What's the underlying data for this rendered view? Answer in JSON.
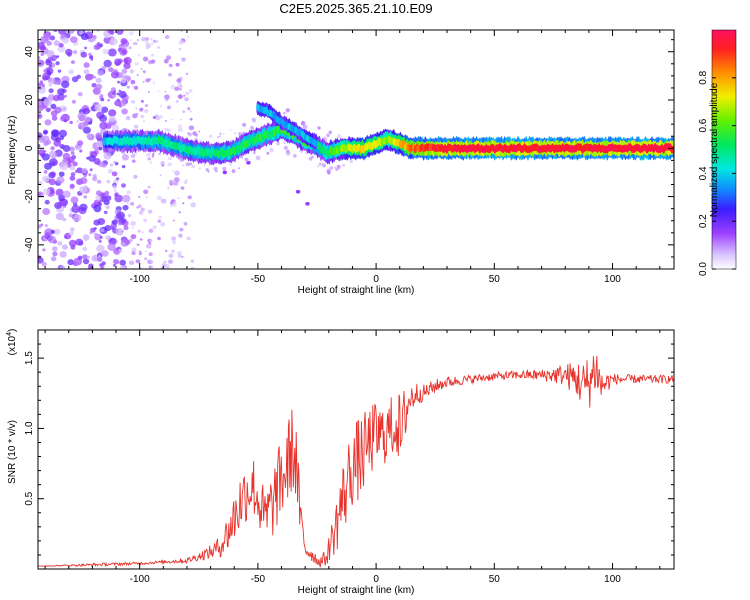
{
  "title": "C2E5.2025.365.21.10.E09",
  "chart_data": [
    {
      "type": "heatmap",
      "title": "C2E5.2025.365.21.10.E09",
      "xlabel": "Height of straight line (km)",
      "ylabel": "Frequency (Hz)",
      "xlim": [
        -143,
        126
      ],
      "ylim": [
        -50,
        49
      ],
      "xticks": [
        -100,
        -50,
        0,
        50,
        100
      ],
      "xtick_labels": [
        "-100",
        "-50",
        "0",
        "50",
        "100"
      ],
      "yticks": [
        -40,
        -20,
        0,
        20,
        40
      ],
      "ytick_labels": [
        "-40",
        "-20",
        "0",
        "20",
        "40"
      ],
      "ridge": {
        "x": [
          -115,
          -108,
          -100,
          -92,
          -85,
          -78,
          -72,
          -65,
          -60,
          -55,
          -50,
          -45,
          -40,
          -35,
          -30,
          -25,
          -21,
          -18,
          -14,
          -10,
          -5,
          0,
          5,
          10,
          15,
          25,
          40,
          60,
          80,
          100,
          126
        ],
        "y": [
          3,
          3,
          3,
          3,
          1,
          -1,
          -2,
          -2,
          -1,
          2,
          4,
          6,
          8,
          6,
          3,
          1,
          -2,
          -1,
          0,
          0,
          0,
          2,
          4,
          2,
          0,
          0,
          0,
          0,
          0,
          0,
          0
        ],
        "amplitude": [
          0.35,
          0.4,
          0.4,
          0.45,
          0.45,
          0.45,
          0.45,
          0.5,
          0.5,
          0.5,
          0.5,
          0.5,
          0.55,
          0.55,
          0.55,
          0.5,
          0.5,
          0.55,
          0.65,
          0.7,
          0.75,
          0.7,
          0.6,
          0.75,
          0.85,
          0.95,
          0.97,
          0.97,
          0.97,
          0.97,
          0.97
        ]
      },
      "branch": {
        "x": [
          -50,
          -45,
          -40,
          -35,
          -30,
          -25
        ],
        "y": [
          17,
          15,
          11,
          8,
          5,
          2
        ]
      },
      "colorbar": {
        "label": "Normalized spectral amplitude",
        "range": [
          0.0,
          1.0
        ],
        "ticks": [
          0.0,
          0.2,
          0.4,
          0.6,
          0.8
        ],
        "tick_labels": [
          "0.0",
          "0.2",
          "0.4",
          "0.6",
          "0.8"
        ]
      }
    },
    {
      "type": "line",
      "xlabel": "Height of straight line (km)",
      "ylabel": "SNR (10 * v/v)",
      "multiplier_label": "(x10",
      "multiplier_exp": "4",
      "multiplier_close": ")",
      "xlim": [
        -143,
        126
      ],
      "ylim": [
        0,
        1.7
      ],
      "xticks": [
        -100,
        -50,
        0,
        50,
        100
      ],
      "xtick_labels": [
        "-100",
        "-50",
        "0",
        "50",
        "100"
      ],
      "yticks": [
        0.5,
        1.0,
        1.5
      ],
      "ytick_labels": [
        "0.5",
        "1.0",
        "1.5"
      ],
      "series": [
        {
          "name": "SNR",
          "color": "#e8322c",
          "x": [
            -143,
            -120,
            -100,
            -90,
            -80,
            -75,
            -70,
            -66,
            -62,
            -58,
            -55,
            -52,
            -50,
            -47,
            -44,
            -41,
            -38,
            -36,
            -34,
            -32,
            -30,
            -27,
            -24,
            -21,
            -19,
            -17,
            -15,
            -13,
            -11,
            -9,
            -6,
            -3,
            0,
            3,
            6,
            9,
            11,
            12,
            14,
            17,
            20,
            25,
            30,
            40,
            50,
            60,
            70,
            80,
            85,
            88,
            91,
            93,
            95,
            100,
            110,
            126
          ],
          "y": [
            0.02,
            0.03,
            0.04,
            0.05,
            0.06,
            0.09,
            0.12,
            0.16,
            0.28,
            0.45,
            0.55,
            0.6,
            0.5,
            0.35,
            0.45,
            0.6,
            0.7,
            0.85,
            0.8,
            0.35,
            0.15,
            0.1,
            0.05,
            0.08,
            0.2,
            0.3,
            0.45,
            0.55,
            0.7,
            0.75,
            0.8,
            0.9,
            0.95,
            0.95,
            1.0,
            1.05,
            0.9,
            1.1,
            1.2,
            1.25,
            1.25,
            1.3,
            1.33,
            1.35,
            1.37,
            1.38,
            1.38,
            1.38,
            1.35,
            1.3,
            1.35,
            1.45,
            1.3,
            1.35,
            1.35,
            1.35
          ],
          "noise": [
            0.0,
            0.01,
            0.01,
            0.01,
            0.02,
            0.03,
            0.05,
            0.08,
            0.15,
            0.22,
            0.22,
            0.22,
            0.22,
            0.22,
            0.25,
            0.28,
            0.3,
            0.32,
            0.32,
            0.15,
            0.08,
            0.05,
            0.04,
            0.06,
            0.12,
            0.2,
            0.25,
            0.28,
            0.28,
            0.3,
            0.3,
            0.25,
            0.25,
            0.22,
            0.22,
            0.25,
            0.3,
            0.22,
            0.15,
            0.08,
            0.06,
            0.05,
            0.04,
            0.03,
            0.03,
            0.03,
            0.04,
            0.08,
            0.14,
            0.18,
            0.2,
            0.2,
            0.12,
            0.04,
            0.03,
            0.03
          ]
        }
      ]
    }
  ]
}
